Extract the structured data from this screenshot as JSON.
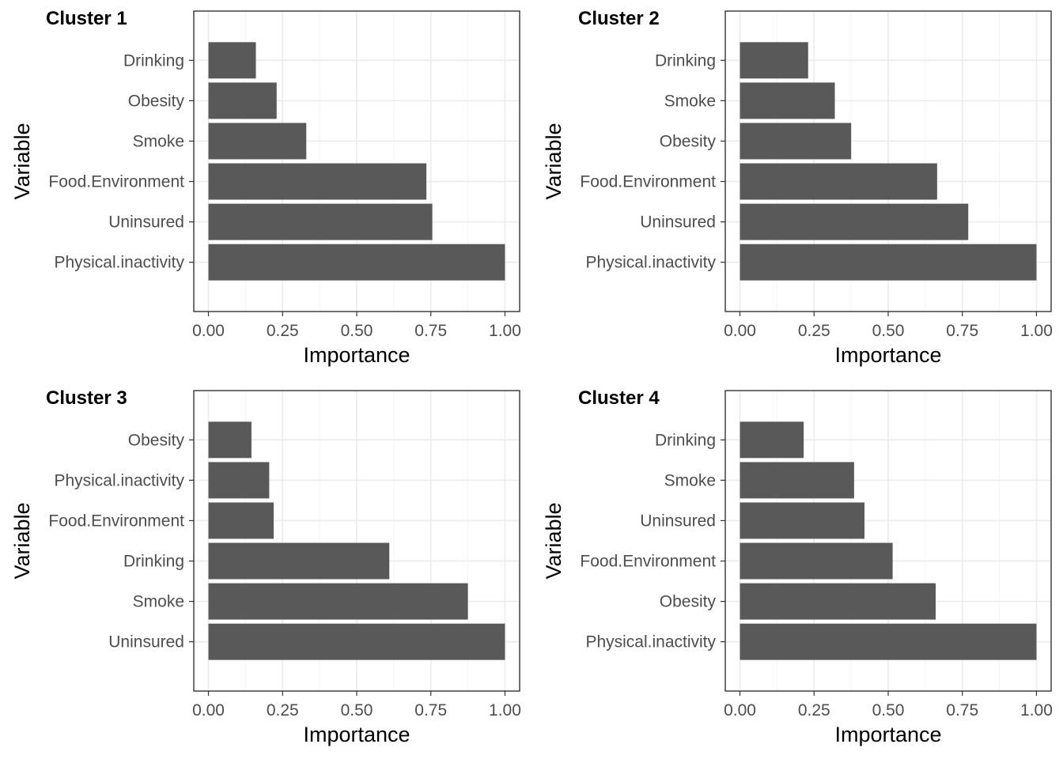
{
  "chart_data": [
    {
      "type": "bar",
      "orientation": "horizontal",
      "title": "Cluster 1",
      "xlabel": "Importance",
      "ylabel": "Variable",
      "categories": [
        "Drinking",
        "Obesity",
        "Smoke",
        "Food.Environment",
        "Uninsured",
        "Physical.inactivity"
      ],
      "values": [
        0.16,
        0.23,
        0.33,
        0.735,
        0.755,
        1.0
      ],
      "xlim": [
        0,
        1
      ],
      "xticks": [
        "0.00",
        "0.25",
        "0.50",
        "0.75",
        "1.00"
      ],
      "grid": true,
      "bar_color": "#595959"
    },
    {
      "type": "bar",
      "orientation": "horizontal",
      "title": "Cluster 2",
      "xlabel": "Importance",
      "ylabel": "Variable",
      "categories": [
        "Drinking",
        "Smoke",
        "Obesity",
        "Food.Environment",
        "Uninsured",
        "Physical.inactivity"
      ],
      "values": [
        0.23,
        0.32,
        0.375,
        0.665,
        0.77,
        1.0
      ],
      "xlim": [
        0,
        1
      ],
      "xticks": [
        "0.00",
        "0.25",
        "0.50",
        "0.75",
        "1.00"
      ],
      "grid": true,
      "bar_color": "#595959"
    },
    {
      "type": "bar",
      "orientation": "horizontal",
      "title": "Cluster 3",
      "xlabel": "Importance",
      "ylabel": "Variable",
      "categories": [
        "Obesity",
        "Physical.inactivity",
        "Food.Environment",
        "Drinking",
        "Smoke",
        "Uninsured"
      ],
      "values": [
        0.145,
        0.205,
        0.22,
        0.61,
        0.875,
        1.0
      ],
      "xlim": [
        0,
        1
      ],
      "xticks": [
        "0.00",
        "0.25",
        "0.50",
        "0.75",
        "1.00"
      ],
      "grid": true,
      "bar_color": "#595959"
    },
    {
      "type": "bar",
      "orientation": "horizontal",
      "title": "Cluster 4",
      "xlabel": "Importance",
      "ylabel": "Variable",
      "categories": [
        "Drinking",
        "Smoke",
        "Uninsured",
        "Food.Environment",
        "Obesity",
        "Physical.inactivity"
      ],
      "values": [
        0.215,
        0.385,
        0.42,
        0.515,
        0.66,
        1.0
      ],
      "xlim": [
        0,
        1
      ],
      "xticks": [
        "0.00",
        "0.25",
        "0.50",
        "0.75",
        "1.00"
      ],
      "grid": true,
      "bar_color": "#595959"
    }
  ]
}
